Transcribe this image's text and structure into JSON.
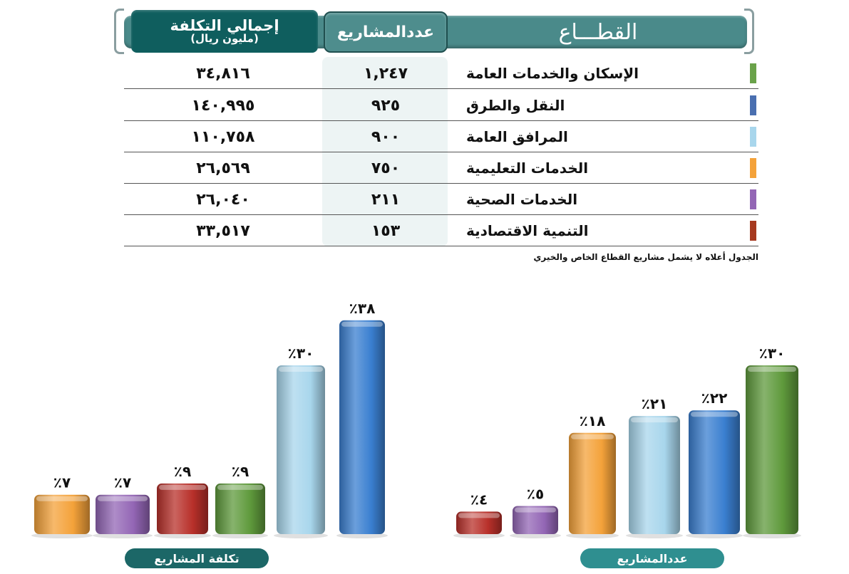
{
  "table": {
    "headers": {
      "sector": "القطـــاع",
      "count": "عددالمشاريع",
      "cost": "إجمالي التكلفة",
      "cost_unit": "(مليون ريال)"
    },
    "rows": [
      {
        "name": "الإسكان والخدمات العامة",
        "count": "١,٢٤٧",
        "cost": "٣٤,٨١٦",
        "color": "#6aa24a"
      },
      {
        "name": "النقل والطرق",
        "count": "٩٢٥",
        "cost": "١٤٠,٩٩٥",
        "color": "#4a6fb0"
      },
      {
        "name": "المرافق العامة",
        "count": "٩٠٠",
        "cost": "١١٠,٧٥٨",
        "color": "#a8d6ec"
      },
      {
        "name": "الخدمات التعليمية",
        "count": "٧٥٠",
        "cost": "٢٦,٥٦٩",
        "color": "#f4a23a"
      },
      {
        "name": "الخدمات الصحية",
        "count": "٢١١",
        "cost": "٢٦,٠٤٠",
        "color": "#9366b5"
      },
      {
        "name": "التنمية الاقتصادية",
        "count": "١٥٣",
        "cost": "٣٣,٥١٧",
        "color": "#a6391f"
      }
    ],
    "footnote": "الجدول أعلاه لا يشمل مشاريع القطاع الخاص والخيري"
  },
  "chart_data": [
    {
      "type": "bar",
      "title": "تكلفة المشاريع",
      "categories": [
        "التنمية الاقتصادية",
        "الخدمات الصحية",
        "الإسكان والخدمات العامة",
        "الخدمات التعليمية",
        "المرافق العامة",
        "النقل والطرق"
      ],
      "values": [
        7,
        7,
        9,
        9,
        30,
        38
      ],
      "labels": [
        "٪٧",
        "٪٧",
        "٪٩",
        "٪٩",
        "٪٣٠",
        "٪٣٨"
      ],
      "colors": [
        "#f4a23a",
        "#9366b5",
        "#b8302a",
        "#5f9a3c",
        "#a8d6ec",
        "#3a7fd0"
      ]
    },
    {
      "type": "bar",
      "title": "عددالمشاريع",
      "categories": [
        "التنمية الاقتصادية",
        "الخدمات الصحية",
        "الخدمات التعليمية",
        "المرافق العامة",
        "النقل والطرق",
        "الإسكان والخدمات العامة"
      ],
      "values": [
        4,
        5,
        18,
        21,
        22,
        30
      ],
      "labels": [
        "٪٤",
        "٪٥",
        "٪١٨",
        "٪٢١",
        "٪٢٢",
        "٪٣٠"
      ],
      "colors": [
        "#b8302a",
        "#9366b5",
        "#f4a23a",
        "#a8d6ec",
        "#3a7fd0",
        "#5f9a3c"
      ]
    }
  ]
}
